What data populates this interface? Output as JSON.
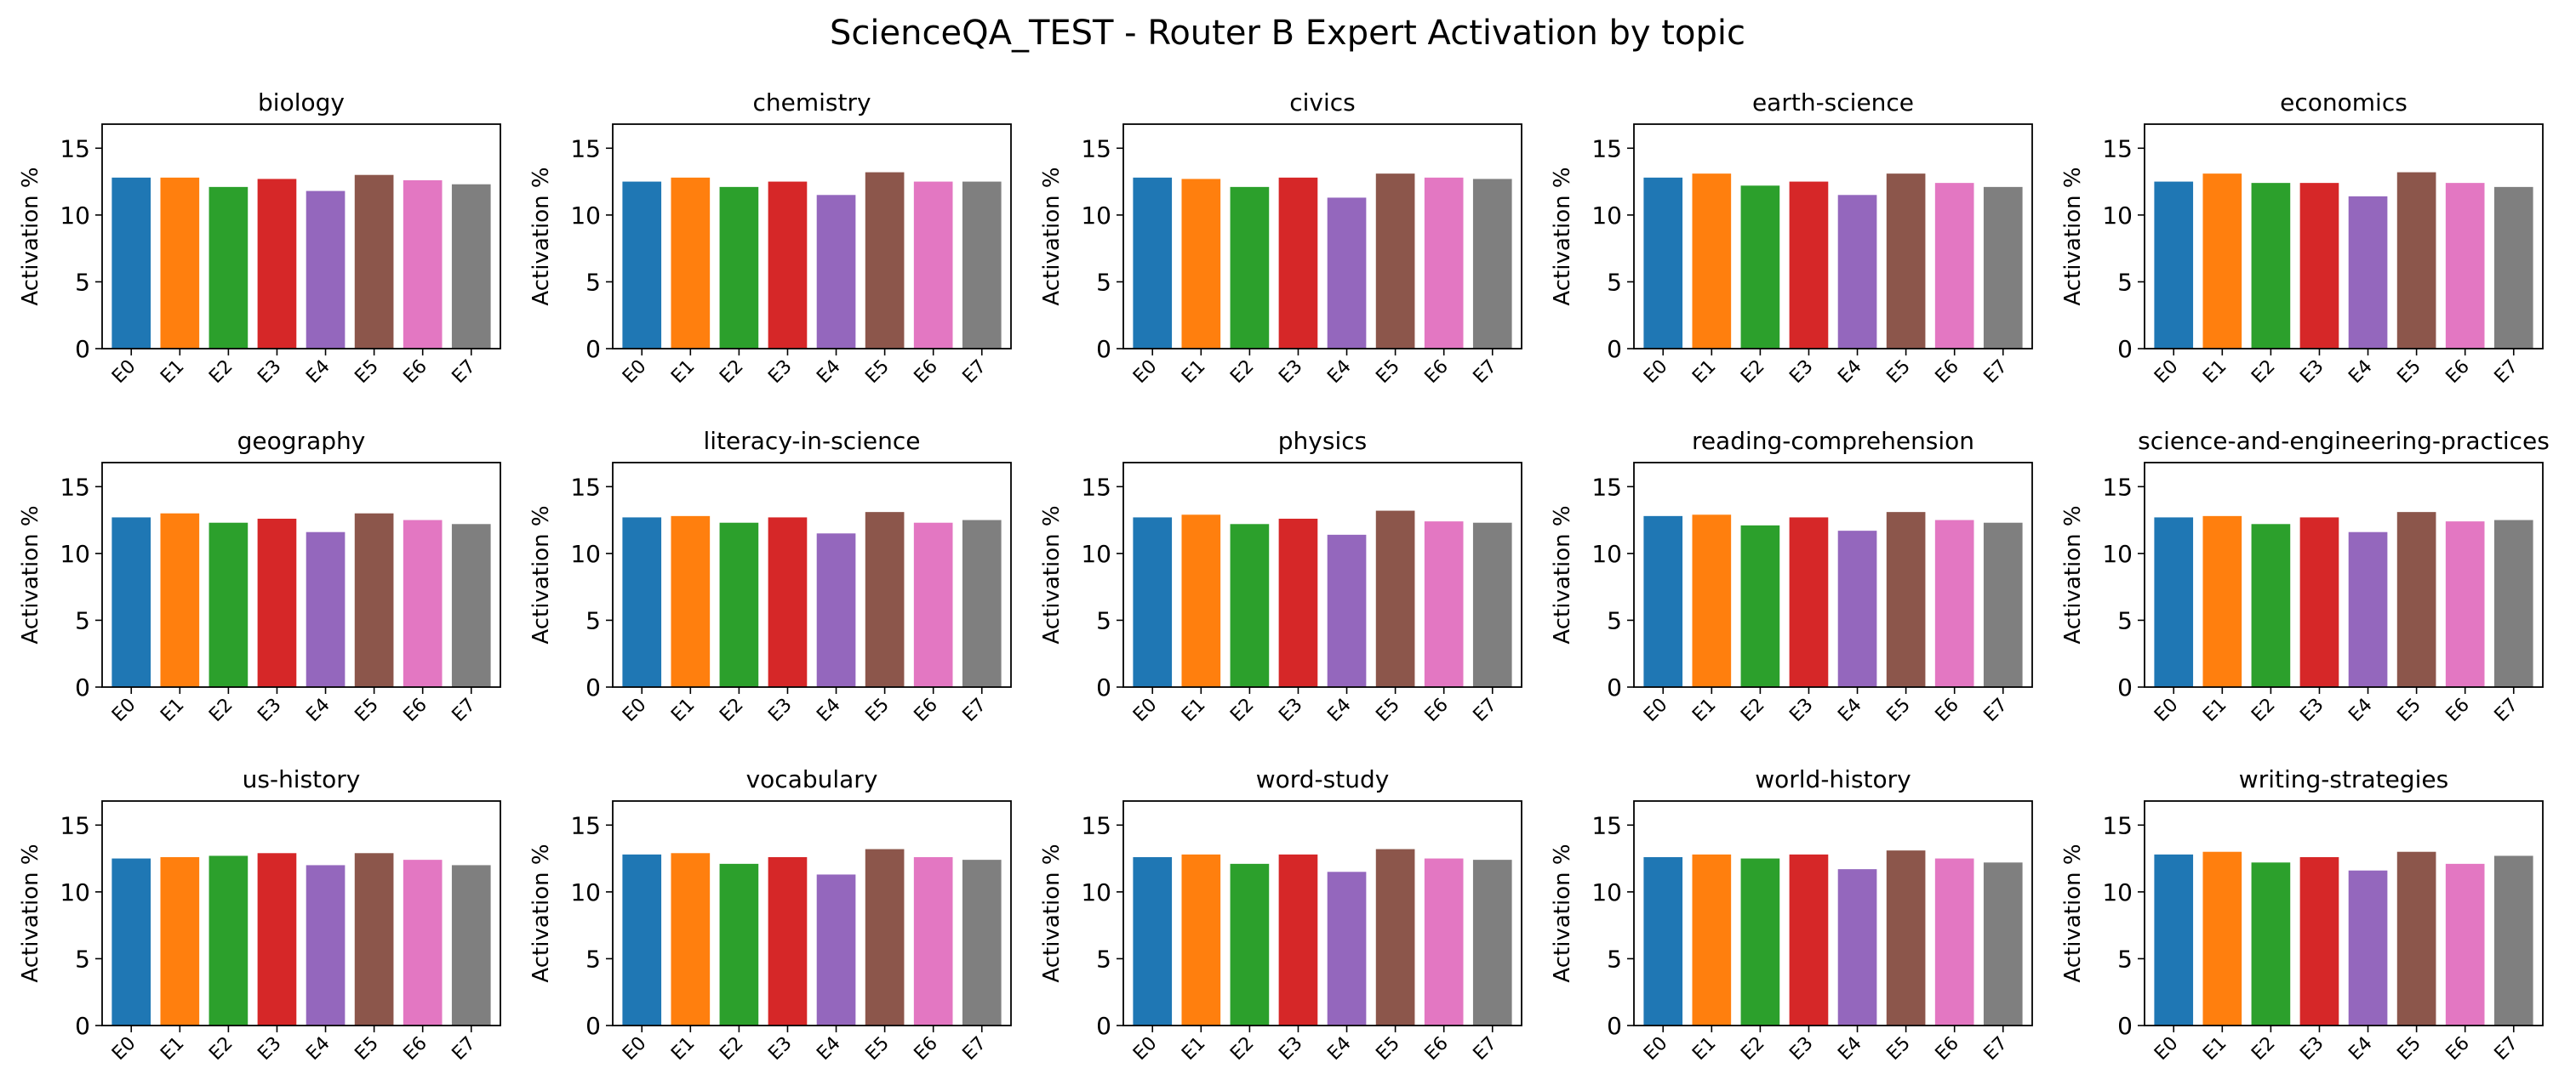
{
  "figure": {
    "title": "ScienceQA_TEST - Router B Expert Activation by topic"
  },
  "chart_data": {
    "type": "bar",
    "layout": "3 rows x 5 columns grid of subplots",
    "categories": [
      "E0",
      "E1",
      "E2",
      "E3",
      "E4",
      "E5",
      "E6",
      "E7"
    ],
    "colors": [
      "#1f77b4",
      "#ff7f0e",
      "#2ca02c",
      "#d62728",
      "#9467bd",
      "#8c564b",
      "#e377c2",
      "#7f7f7f"
    ],
    "ylabel": "Activation %",
    "ylim": [
      0,
      16.8
    ],
    "yticks": [
      0,
      5,
      10,
      15
    ],
    "grid": false,
    "legend": "none",
    "panels": [
      {
        "title": "biology",
        "values": [
          12.8,
          12.8,
          12.1,
          12.7,
          11.8,
          13.0,
          12.6,
          12.3
        ]
      },
      {
        "title": "chemistry",
        "values": [
          12.5,
          12.8,
          12.1,
          12.5,
          11.5,
          13.2,
          12.5,
          12.5
        ]
      },
      {
        "title": "civics",
        "values": [
          12.8,
          12.7,
          12.1,
          12.8,
          11.3,
          13.1,
          12.8,
          12.7
        ]
      },
      {
        "title": "earth-science",
        "values": [
          12.8,
          13.1,
          12.2,
          12.5,
          11.5,
          13.1,
          12.4,
          12.1
        ]
      },
      {
        "title": "economics",
        "values": [
          12.5,
          13.1,
          12.4,
          12.4,
          11.4,
          13.2,
          12.4,
          12.1
        ]
      },
      {
        "title": "geography",
        "values": [
          12.7,
          13.0,
          12.3,
          12.6,
          11.6,
          13.0,
          12.5,
          12.2
        ]
      },
      {
        "title": "literacy-in-science",
        "values": [
          12.7,
          12.8,
          12.3,
          12.7,
          11.5,
          13.1,
          12.3,
          12.5
        ]
      },
      {
        "title": "physics",
        "values": [
          12.7,
          12.9,
          12.2,
          12.6,
          11.4,
          13.2,
          12.4,
          12.3
        ]
      },
      {
        "title": "reading-comprehension",
        "values": [
          12.8,
          12.9,
          12.1,
          12.7,
          11.7,
          13.1,
          12.5,
          12.3
        ]
      },
      {
        "title": "science-and-engineering-practices",
        "values": [
          12.7,
          12.8,
          12.2,
          12.7,
          11.6,
          13.1,
          12.4,
          12.5
        ]
      },
      {
        "title": "us-history",
        "values": [
          12.5,
          12.6,
          12.7,
          12.9,
          12.0,
          12.9,
          12.4,
          12.0
        ]
      },
      {
        "title": "vocabulary",
        "values": [
          12.8,
          12.9,
          12.1,
          12.6,
          11.3,
          13.2,
          12.6,
          12.4
        ]
      },
      {
        "title": "word-study",
        "values": [
          12.6,
          12.8,
          12.1,
          12.8,
          11.5,
          13.2,
          12.5,
          12.4
        ]
      },
      {
        "title": "world-history",
        "values": [
          12.6,
          12.8,
          12.5,
          12.8,
          11.7,
          13.1,
          12.5,
          12.2
        ]
      },
      {
        "title": "writing-strategies",
        "values": [
          12.8,
          13.0,
          12.2,
          12.6,
          11.6,
          13.0,
          12.1,
          12.7
        ]
      }
    ]
  }
}
